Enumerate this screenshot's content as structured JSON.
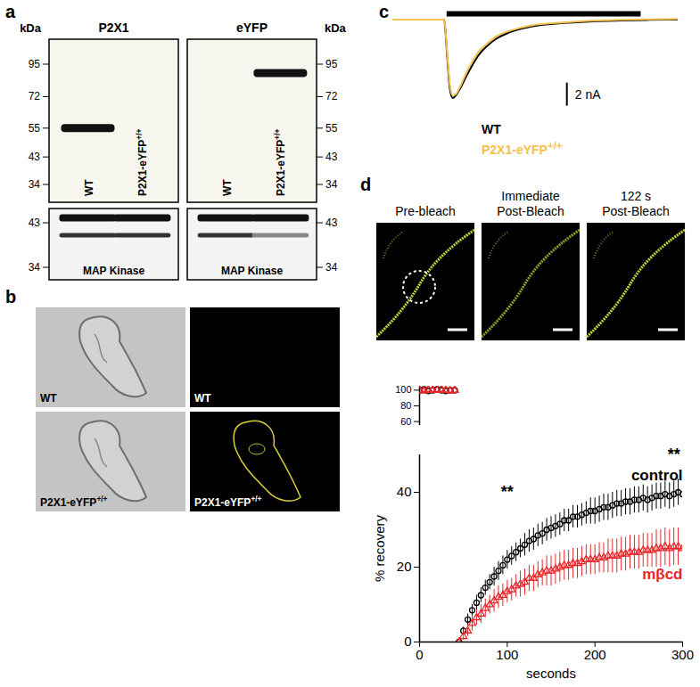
{
  "panels": {
    "letters": [
      "a",
      "b",
      "c",
      "d"
    ],
    "a": {
      "unit": "kDa",
      "markers": [
        95,
        72,
        55,
        43,
        34
      ],
      "lanes": [
        "WT",
        "P2X1-eYFP +/+"
      ],
      "blots": [
        {
          "title": "P2X1",
          "band": {
            "lane": 0,
            "kDa": 55
          }
        },
        {
          "title": "eYFP",
          "band": {
            "lane": 1,
            "kDa": 88
          }
        }
      ],
      "loading": {
        "label": "MAP Kinase",
        "markers": [
          43,
          34
        ],
        "bands_kDa": [
          44,
          40.5
        ]
      }
    },
    "b": {
      "images": [
        {
          "kind": "brightfield",
          "eyfp": false,
          "label": "WT"
        },
        {
          "kind": "fluorescence",
          "eyfp": false,
          "label": "WT"
        },
        {
          "kind": "brightfield",
          "eyfp": true,
          "label": "P2X1-eYFP +/+"
        },
        {
          "kind": "fluorescence",
          "eyfp": true,
          "label": "P2X1-eYFP +/+"
        }
      ]
    },
    "d_images": {
      "titles": [
        "Pre-bleach",
        "Immediate Post-Bleach",
        "122 s Post-Bleach"
      ]
    }
  },
  "chart_data": [
    {
      "type": "line",
      "tick_labels": false,
      "xlim": [
        0,
        100
      ],
      "ylim": [
        -8,
        0.5
      ],
      "x": [
        0,
        18,
        19,
        20,
        21,
        22,
        24,
        26,
        28,
        30,
        33,
        36,
        40,
        45,
        50,
        60,
        70,
        80,
        90,
        100
      ],
      "series": [
        {
          "name": "WT",
          "color": "#000000",
          "values": [
            0,
            0,
            -3,
            -6,
            -6.8,
            -6.6,
            -5.8,
            -4.8,
            -3.9,
            -3.1,
            -2.3,
            -1.7,
            -1.2,
            -0.8,
            -0.55,
            -0.3,
            -0.15,
            -0.08,
            -0.03,
            0
          ]
        },
        {
          "name": "P2X1-eYFP +/+",
          "color": "#f2c14e",
          "values": [
            0,
            0,
            -2.8,
            -5.7,
            -6.6,
            -6.5,
            -5.6,
            -4.5,
            -3.6,
            -2.8,
            -2.1,
            -1.5,
            -1.05,
            -0.7,
            -0.45,
            -0.25,
            -0.1,
            -0.03,
            0.02,
            0.05
          ]
        }
      ],
      "agonist_bar": [
        19,
        87
      ],
      "scale_bar": {
        "value": 2,
        "label": "2 nA"
      }
    },
    {
      "type": "scatter",
      "tick_labels": "y",
      "xlim": [
        0,
        300
      ],
      "ylim": [
        55,
        105
      ],
      "yticks": [
        60,
        80,
        100
      ],
      "x": [
        0,
        5,
        10,
        15,
        20,
        25,
        30,
        35,
        40
      ],
      "series": [
        {
          "color": "#000000",
          "marker": "circle",
          "values": [
            100,
            101,
            99,
            100,
            101,
            100,
            99,
            100,
            100
          ]
        },
        {
          "color": "#e8262a",
          "marker": "triangle",
          "values": [
            100,
            99,
            101,
            100,
            100,
            101,
            100,
            99,
            100
          ]
        }
      ]
    },
    {
      "type": "scatter",
      "x_label": "seconds",
      "y_label": "% recovery",
      "xlim": [
        0,
        300
      ],
      "xticks": [
        0,
        100,
        200,
        300
      ],
      "ylim": [
        0,
        50
      ],
      "yticks": [
        0,
        20,
        40
      ],
      "x": [
        45,
        50,
        55,
        60,
        65,
        70,
        75,
        80,
        85,
        90,
        95,
        100,
        105,
        110,
        115,
        120,
        125,
        130,
        135,
        140,
        145,
        150,
        155,
        160,
        165,
        170,
        175,
        180,
        185,
        190,
        195,
        200,
        205,
        210,
        215,
        220,
        225,
        230,
        235,
        240,
        245,
        250,
        255,
        260,
        265,
        270,
        275,
        280,
        285,
        290,
        295,
        300
      ],
      "series": [
        {
          "name": "control",
          "color": "#000000",
          "marker": "circle",
          "values": [
            0,
            3,
            6,
            8.5,
            10.5,
            12.5,
            14.5,
            16,
            17.5,
            19,
            20.5,
            22,
            23,
            24,
            25,
            26,
            27,
            27.5,
            28.5,
            29,
            30,
            30.5,
            31,
            31.5,
            32.5,
            32.5,
            33.5,
            33.5,
            34,
            34.5,
            35,
            35,
            35.5,
            36,
            36,
            36.5,
            37,
            37,
            37.5,
            37.5,
            38,
            38,
            38.5,
            38,
            38.5,
            39,
            39,
            39.5,
            39,
            39.5,
            40,
            39.5
          ],
          "errors": [
            0,
            1,
            1.5,
            1.5,
            2,
            2,
            2,
            2,
            2.5,
            2.5,
            2.5,
            2.5,
            2.5,
            2.5,
            2.5,
            3,
            3,
            3,
            3,
            3,
            3,
            3,
            3,
            3,
            3,
            3,
            3,
            3,
            3,
            3,
            3.5,
            3.5,
            3.5,
            3.5,
            3.5,
            3.5,
            3.5,
            3.5,
            3.5,
            3.5,
            3.5,
            3.5,
            3.5,
            3.5,
            3.5,
            3.5,
            3.5,
            3.5,
            3.5,
            3.5,
            3.5,
            3.5
          ]
        },
        {
          "name": "mβcd",
          "color": "#e8262a",
          "marker": "triangle",
          "values": [
            0,
            1.5,
            3,
            5,
            6.5,
            7.5,
            9,
            10,
            11,
            12,
            12.5,
            13.5,
            14,
            15,
            15.5,
            16,
            17,
            17,
            18,
            18.5,
            19,
            19,
            19.5,
            20,
            20.5,
            20.5,
            21,
            21,
            21.5,
            22,
            22,
            22,
            22.5,
            22.5,
            23,
            23,
            23,
            23.5,
            23.5,
            24,
            24,
            24,
            24.5,
            24.5,
            24.5,
            25,
            25,
            25.5,
            25,
            25.5,
            25.5,
            25
          ],
          "errors": [
            0,
            1,
            1.5,
            2,
            2,
            2.5,
            2.5,
            2.5,
            3,
            3,
            3,
            3,
            3,
            3,
            3.5,
            3.5,
            3.5,
            3.5,
            3.5,
            3.5,
            4,
            4,
            4,
            4,
            4,
            4,
            4,
            4,
            4,
            4,
            4,
            4,
            4,
            4,
            4.5,
            4.5,
            4.5,
            4.5,
            4.5,
            4.5,
            4.5,
            4.5,
            4.5,
            4.5,
            4.5,
            5,
            5,
            5,
            5,
            5,
            5,
            5
          ]
        }
      ],
      "annotations": [
        {
          "text": "**",
          "x": 100,
          "y": 40
        },
        {
          "text": "**",
          "x": 290,
          "y": 50
        }
      ]
    }
  ]
}
